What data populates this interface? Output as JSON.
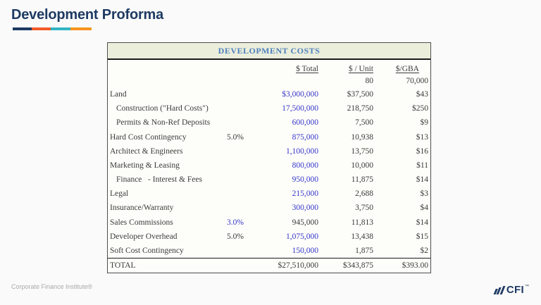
{
  "slide": {
    "title": "Development Proforma",
    "footer": "Corporate Finance Institute®",
    "logo_text": "CFI",
    "logo_tm": "™"
  },
  "theme": {
    "title_color": "#1e3a63",
    "accent_navy": "#1e3a63",
    "accent_red_orange": "#f15a29",
    "accent_teal": "#31b5c4",
    "accent_orange": "#f7941e",
    "table_header_bg": "#ebeedb",
    "table_header_text": "#4f81bd",
    "input_blue": "#3636cc"
  },
  "table": {
    "title": "DEVELOPMENT COSTS",
    "columns": {
      "total": "$ Total",
      "unit": "$ / Unit",
      "gba": "$/GBA"
    },
    "units_row": {
      "unit": "80",
      "gba": "70,000"
    },
    "rows": [
      {
        "label": "Land",
        "indent": false,
        "pct": "",
        "pct_color": "black",
        "total": "$3,000,000",
        "total_color": "blue",
        "unit": "$37,500",
        "gba": "$43"
      },
      {
        "label": "Construction (\"Hard Costs\")",
        "indent": true,
        "pct": "",
        "pct_color": "black",
        "total": "17,500,000",
        "total_color": "blue",
        "unit": "218,750",
        "gba": "$250"
      },
      {
        "label": "Permits & Non-Ref Deposits",
        "indent": true,
        "pct": "",
        "pct_color": "black",
        "total": "600,000",
        "total_color": "blue",
        "unit": "7,500",
        "gba": "$9"
      },
      {
        "label": "Hard Cost Contingency",
        "indent": false,
        "pct": "5.0%",
        "pct_color": "black",
        "total": "875,000",
        "total_color": "blue",
        "unit": "10,938",
        "gba": "$13"
      },
      {
        "label": "Architect & Engineers",
        "indent": false,
        "pct": "",
        "pct_color": "black",
        "total": "1,100,000",
        "total_color": "blue",
        "unit": "13,750",
        "gba": "$16"
      },
      {
        "label": "Marketing & Leasing",
        "indent": false,
        "pct": "",
        "pct_color": "black",
        "total": "800,000",
        "total_color": "blue",
        "unit": "10,000",
        "gba": "$11"
      },
      {
        "label": "Finance   - Interest & Fees",
        "indent": true,
        "pct": "",
        "pct_color": "black",
        "total": "950,000",
        "total_color": "blue",
        "unit": "11,875",
        "gba": "$14"
      },
      {
        "label": "Legal",
        "indent": false,
        "pct": "",
        "pct_color": "black",
        "total": "215,000",
        "total_color": "blue",
        "unit": "2,688",
        "gba": "$3"
      },
      {
        "label": "Insurance/Warranty",
        "indent": false,
        "pct": "",
        "pct_color": "black",
        "total": "300,000",
        "total_color": "blue",
        "unit": "3,750",
        "gba": "$4"
      },
      {
        "label": "Sales Commissions",
        "indent": false,
        "pct": "3.0%",
        "pct_color": "blue",
        "total": "945,000",
        "total_color": "black",
        "unit": "11,813",
        "gba": "$14"
      },
      {
        "label": "Developer Overhead",
        "indent": false,
        "pct": "5.0%",
        "pct_color": "black",
        "total": "1,075,000",
        "total_color": "blue",
        "unit": "13,438",
        "gba": "$15"
      },
      {
        "label": "Soft Cost Contingency",
        "indent": false,
        "pct": "",
        "pct_color": "black",
        "total": "150,000",
        "total_color": "blue",
        "unit": "1,875",
        "gba": "$2"
      }
    ],
    "total_row": {
      "label": "TOTAL",
      "total": "$27,510,000",
      "unit": "$343,875",
      "gba": "$393.00"
    }
  }
}
